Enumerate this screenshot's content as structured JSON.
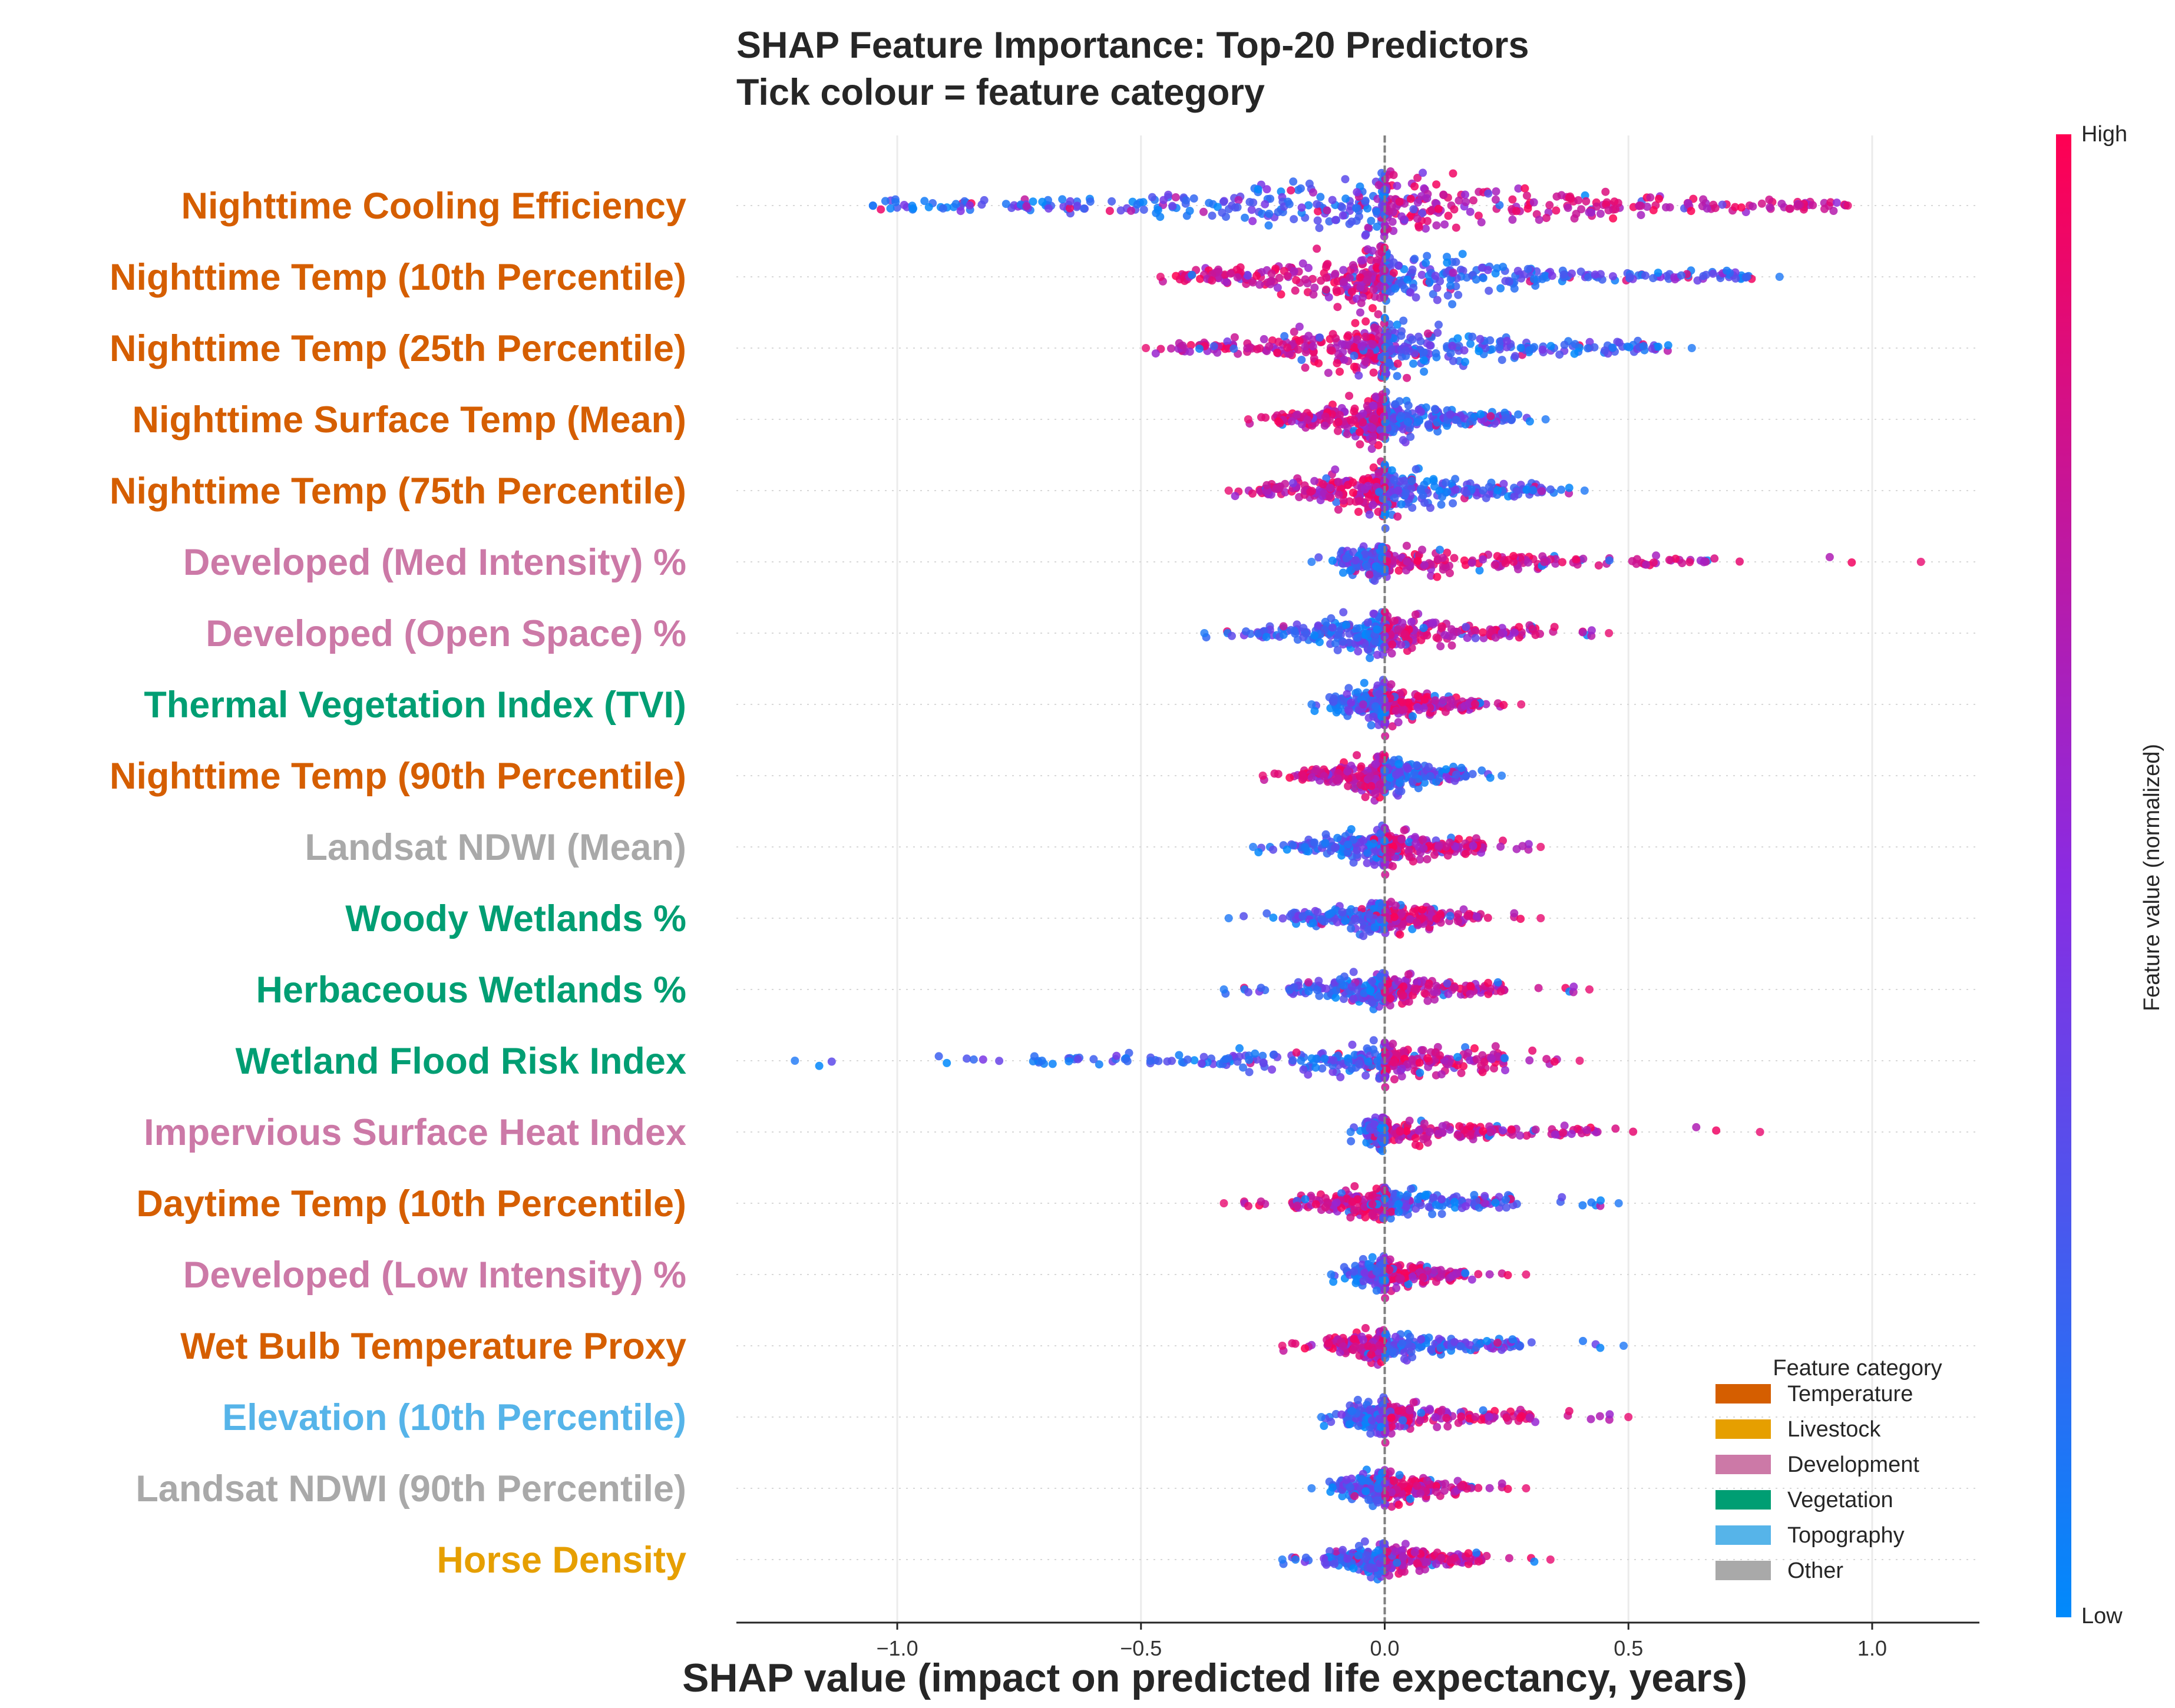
{
  "chart_data": {
    "type": "scatter",
    "subtype": "shap-beeswarm",
    "title_line1": "SHAP Feature Importance: Top-20 Predictors",
    "title_line2": "Tick colour = feature category",
    "xlabel": "SHAP value  (impact on predicted life expectancy, years)",
    "xlim": [
      -1.33,
      1.22
    ],
    "xticks": [
      -1.0,
      -0.5,
      0.0,
      0.5,
      1.0
    ],
    "xtick_labels": [
      "−1.0",
      "−0.5",
      "0.0",
      "0.5",
      "1.0"
    ],
    "grid": "vertical",
    "zero_line": true,
    "colorbar": {
      "label": "Feature value (normalized)",
      "high": "High",
      "low": "Low",
      "color_low": "#008afb",
      "color_mid": "#8a2be2",
      "color_high": "#ff0052"
    },
    "category_colors": {
      "Temperature": "#d55e00",
      "Livestock": "#e69f00",
      "Development": "#cc79a7",
      "Vegetation": "#009e73",
      "Topography": "#56b4e9",
      "Other": "#a9a9a9"
    },
    "legend": {
      "title": "Feature category",
      "placement": "lower-right",
      "entries": [
        "Temperature",
        "Livestock",
        "Development",
        "Vegetation",
        "Topography",
        "Other"
      ]
    },
    "features": [
      {
        "name": "Nighttime Cooling Efficiency",
        "category": "Temperature",
        "range": [
          -1.05,
          0.95
        ],
        "neg_side": "low",
        "spread": 1.0
      },
      {
        "name": "Nighttime Temp (10th Percentile)",
        "category": "Temperature",
        "range": [
          -0.46,
          0.81
        ],
        "neg_side": "high",
        "spread": 0.9
      },
      {
        "name": "Nighttime Temp (25th Percentile)",
        "category": "Temperature",
        "range": [
          -0.49,
          0.63
        ],
        "neg_side": "high",
        "spread": 0.85
      },
      {
        "name": "Nighttime Surface Temp (Mean)",
        "category": "Temperature",
        "range": [
          -0.28,
          0.33
        ],
        "neg_side": "high",
        "spread": 0.7
      },
      {
        "name": "Nighttime Temp (75th Percentile)",
        "category": "Temperature",
        "range": [
          -0.32,
          0.41
        ],
        "neg_side": "high",
        "spread": 0.7
      },
      {
        "name": "Developed (Med Intensity) %",
        "category": "Development",
        "range": [
          -0.15,
          1.1
        ],
        "neg_side": "low",
        "spread": 0.4
      },
      {
        "name": "Developed (Open Space) %",
        "category": "Development",
        "range": [
          -0.37,
          0.46
        ],
        "neg_side": "low",
        "spread": 0.55
      },
      {
        "name": "Thermal Vegetation Index (TVI)",
        "category": "Vegetation",
        "range": [
          -0.15,
          0.28
        ],
        "neg_side": "low",
        "spread": 0.55
      },
      {
        "name": "Nighttime Temp (90th Percentile)",
        "category": "Temperature",
        "range": [
          -0.25,
          0.24
        ],
        "neg_side": "high",
        "spread": 0.55
      },
      {
        "name": "Landsat NDWI (Mean)",
        "category": "Other",
        "range": [
          -0.27,
          0.32
        ],
        "neg_side": "low",
        "spread": 0.45
      },
      {
        "name": "Woody Wetlands %",
        "category": "Vegetation",
        "range": [
          -0.32,
          0.32
        ],
        "neg_side": "low",
        "spread": 0.4
      },
      {
        "name": "Herbaceous Wetlands %",
        "category": "Vegetation",
        "range": [
          -0.33,
          0.42
        ],
        "neg_side": "low",
        "spread": 0.38
      },
      {
        "name": "Wetland Flood Risk Index",
        "category": "Vegetation",
        "range": [
          -1.21,
          0.4
        ],
        "neg_side": "low",
        "spread": 0.42
      },
      {
        "name": "Impervious Surface Heat Index",
        "category": "Development",
        "range": [
          -0.07,
          0.77
        ],
        "neg_side": "low",
        "spread": 0.35
      },
      {
        "name": "Daytime Temp (10th Percentile)",
        "category": "Temperature",
        "range": [
          -0.33,
          0.48
        ],
        "neg_side": "high",
        "spread": 0.35
      },
      {
        "name": "Developed (Low Intensity) %",
        "category": "Development",
        "range": [
          -0.11,
          0.29
        ],
        "neg_side": "low",
        "spread": 0.35
      },
      {
        "name": "Wet Bulb Temperature Proxy",
        "category": "Temperature",
        "range": [
          -0.21,
          0.49
        ],
        "neg_side": "high",
        "spread": 0.35
      },
      {
        "name": "Elevation (10th Percentile)",
        "category": "Topography",
        "range": [
          -0.13,
          0.5
        ],
        "neg_side": "low",
        "spread": 0.4
      },
      {
        "name": "Landsat NDWI (90th Percentile)",
        "category": "Other",
        "range": [
          -0.15,
          0.29
        ],
        "neg_side": "low",
        "spread": 0.42
      },
      {
        "name": "Horse Density",
        "category": "Livestock",
        "range": [
          -0.21,
          0.34
        ],
        "neg_side": "low",
        "spread": 0.38
      }
    ]
  }
}
